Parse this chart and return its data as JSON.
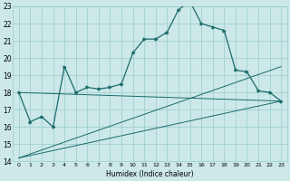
{
  "title": "",
  "xlabel": "Humidex (Indice chaleur)",
  "ylabel": "",
  "bg_color": "#cce8e8",
  "grid_color": "#99cccc",
  "line_color": "#1a6b6b",
  "xlim": [
    -0.5,
    23.5
  ],
  "ylim": [
    14,
    23
  ],
  "xticks": [
    0,
    1,
    2,
    3,
    4,
    5,
    6,
    7,
    8,
    9,
    10,
    11,
    12,
    13,
    14,
    15,
    16,
    17,
    18,
    19,
    20,
    21,
    22,
    23
  ],
  "yticks": [
    14,
    15,
    16,
    17,
    18,
    19,
    20,
    21,
    22,
    23
  ],
  "main_line_x": [
    0,
    1,
    2,
    3,
    4,
    5,
    6,
    7,
    8,
    9,
    10,
    11,
    12,
    13,
    14,
    15,
    16,
    17,
    18,
    19,
    20,
    21,
    22,
    23
  ],
  "main_line_y": [
    18.0,
    16.3,
    16.6,
    16.0,
    19.5,
    18.0,
    18.3,
    18.2,
    18.3,
    18.5,
    20.3,
    21.1,
    21.1,
    21.5,
    22.8,
    23.3,
    22.0,
    21.8,
    21.6,
    19.3,
    19.2,
    18.1,
    18.0,
    17.5
  ],
  "trend1_x": [
    0,
    23
  ],
  "trend1_y": [
    18.0,
    17.5
  ],
  "trend2_x": [
    0,
    23
  ],
  "trend2_y": [
    14.2,
    19.5
  ],
  "trend3_x": [
    0,
    23
  ],
  "trend3_y": [
    14.2,
    17.5
  ]
}
